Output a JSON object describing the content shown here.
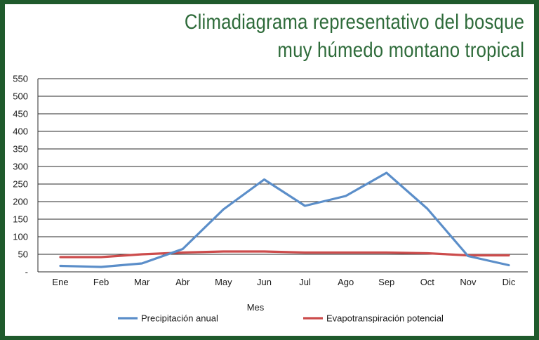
{
  "title_lines": [
    "Climadiagrama representativo del bosque",
    "muy húmedo montano tropical"
  ],
  "colors": {
    "frame": "#1f5a2c",
    "title": "#2e6b3a",
    "precip": "#5b8ec9",
    "evapo": "#cc4c4c",
    "grid": "#222222"
  },
  "chart_data": {
    "type": "line",
    "title": "Climadiagrama representativo del bosque muy húmedo montano tropical",
    "xlabel": "Mes",
    "ylabel": "",
    "categories": [
      "Ene",
      "Feb",
      "Mar",
      "Abr",
      "May",
      "Jun",
      "Jul",
      "Ago",
      "Sep",
      "Oct",
      "Nov",
      "Dic"
    ],
    "yticks": [
      "-",
      "50",
      "100",
      "150",
      "200",
      "250",
      "300",
      "350",
      "400",
      "450",
      "500",
      "550"
    ],
    "ylim": [
      0,
      550
    ],
    "grid": true,
    "legend_position": "bottom",
    "series": [
      {
        "name": "Precipitación anual",
        "color": "#5b8ec9",
        "values": [
          17,
          14,
          24,
          65,
          178,
          263,
          188,
          216,
          282,
          180,
          45,
          19
        ]
      },
      {
        "name": "Evapotranspiración potencial",
        "color": "#cc4c4c",
        "values": [
          42,
          42,
          50,
          55,
          58,
          58,
          55,
          55,
          55,
          53,
          47,
          47
        ]
      }
    ]
  }
}
